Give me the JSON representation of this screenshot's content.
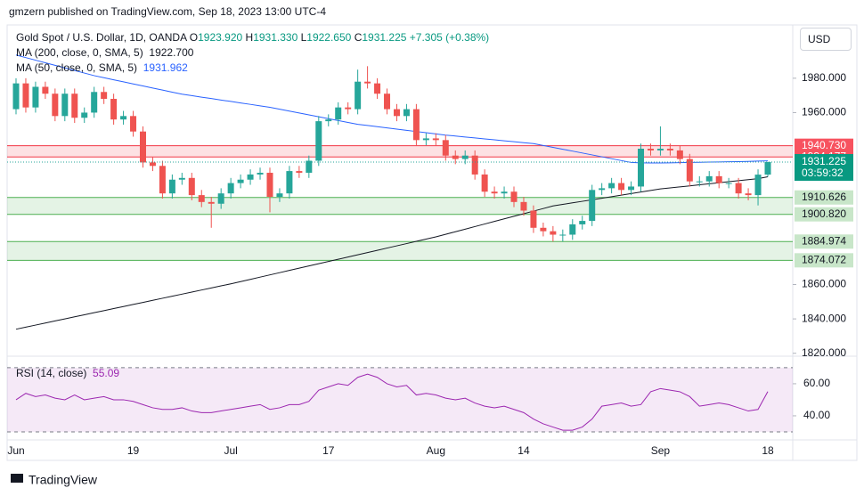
{
  "header": {
    "published": "gmzern published on TradingView.com, Sep 18, 2023 13:00 UTC-4",
    "currency": "USD",
    "footer": "TradingView"
  },
  "chart_data": {
    "type": "candlestick",
    "title": "Gold Spot / U.S. Dollar, 1D, OANDA",
    "ohlc_legend": [
      {
        "label": "O",
        "value": "1923.920"
      },
      {
        "label": "H",
        "value": "1931.330"
      },
      {
        "label": "L",
        "value": "1922.650"
      },
      {
        "label": "C",
        "value": "1931.225"
      }
    ],
    "change": "+7.305 (+0.38%)",
    "categories": [
      "Jun",
      null,
      null,
      null,
      null,
      null,
      null,
      null,
      null,
      null,
      null,
      null,
      "19",
      null,
      null,
      null,
      null,
      null,
      null,
      null,
      null,
      null,
      "Jul",
      null,
      null,
      null,
      null,
      null,
      null,
      null,
      null,
      null,
      "17",
      null,
      null,
      null,
      null,
      null,
      null,
      null,
      null,
      null,
      null,
      "Aug",
      null,
      null,
      null,
      null,
      null,
      null,
      null,
      null,
      "14",
      null,
      null,
      null,
      null,
      null,
      null,
      null,
      null,
      null,
      null,
      null,
      null,
      null,
      "Sep",
      null,
      null,
      null,
      null,
      null,
      null,
      null,
      null,
      null,
      null,
      "18"
    ],
    "open": [
      1962,
      1977,
      1963,
      1975,
      1971,
      1958,
      1971,
      1957,
      1960,
      1972,
      1968,
      1956,
      1958,
      1949,
      1931,
      1929,
      1913,
      1921,
      1922,
      1912,
      1908,
      1907,
      1913,
      1919,
      1921,
      1924,
      1925,
      1911,
      1913,
      1926,
      1925,
      1932,
      1955,
      1956,
      1963,
      1962,
      1978,
      1977,
      1971,
      1962,
      1958,
      1962,
      1944,
      1945,
      1944,
      1935,
      1933,
      1935,
      1924,
      1914,
      1913,
      1914,
      1908,
      1903,
      1893,
      1891,
      1889,
      1889,
      1895,
      1897,
      1915,
      1916,
      1919,
      1915,
      1917,
      1939,
      1938,
      1939,
      1938,
      1933,
      1920,
      1920,
      1923,
      1919,
      1919,
      1913,
      1912,
      1923.92
    ],
    "high": [
      1980,
      1980,
      1978,
      1978,
      1974,
      1974,
      1974,
      1963,
      1975,
      1975,
      1971,
      1961,
      1961,
      1952,
      1934,
      1932,
      1924,
      1925,
      1925,
      1915,
      1911,
      1916,
      1922,
      1924,
      1927,
      1928,
      1928,
      1916,
      1929,
      1929,
      1935,
      1958,
      1959,
      1966,
      1966,
      1985,
      1987,
      1980,
      1974,
      1965,
      1965,
      1965,
      1948,
      1948,
      1947,
      1938,
      1938,
      1938,
      1927,
      1917,
      1917,
      1917,
      1911,
      1906,
      1896,
      1894,
      1892,
      1898,
      1900,
      1918,
      1919,
      1922,
      1922,
      1920,
      1942,
      1942,
      1952,
      1942,
      1941,
      1936,
      1923,
      1926,
      1926,
      1922,
      1922,
      1916,
      1927,
      1931.33
    ],
    "low": [
      1959,
      1960,
      1960,
      1968,
      1955,
      1955,
      1954,
      1954,
      1957,
      1965,
      1953,
      1953,
      1946,
      1928,
      1926,
      1910,
      1910,
      1918,
      1909,
      1905,
      1893,
      1904,
      1910,
      1916,
      1918,
      1921,
      1902,
      1908,
      1910,
      1922,
      1922,
      1929,
      1952,
      1953,
      1959,
      1959,
      1974,
      1968,
      1959,
      1955,
      1955,
      1941,
      1941,
      1941,
      1932,
      1930,
      1930,
      1921,
      1911,
      1910,
      1910,
      1905,
      1900,
      1890,
      1888,
      1885,
      1885,
      1886,
      1892,
      1894,
      1912,
      1913,
      1912,
      1912,
      1914,
      1935,
      1935,
      1935,
      1930,
      1917,
      1917,
      1917,
      1916,
      1916,
      1910,
      1909,
      1906,
      1922.65
    ],
    "close": [
      1977,
      1963,
      1975,
      1971,
      1958,
      1971,
      1957,
      1960,
      1972,
      1968,
      1956,
      1958,
      1949,
      1931,
      1929,
      1913,
      1921,
      1922,
      1912,
      1908,
      1907,
      1913,
      1919,
      1921,
      1924,
      1925,
      1911,
      1913,
      1926,
      1925,
      1932,
      1955,
      1956,
      1963,
      1962,
      1978,
      1977,
      1971,
      1962,
      1958,
      1962,
      1944,
      1945,
      1944,
      1935,
      1933,
      1935,
      1924,
      1914,
      1913,
      1914,
      1908,
      1903,
      1893,
      1891,
      1889,
      1889,
      1895,
      1897,
      1915,
      1916,
      1919,
      1915,
      1917,
      1939,
      1938,
      1939,
      1938,
      1933,
      1920,
      1920,
      1923,
      1919,
      1919,
      1913,
      1912,
      1923.92,
      1931.225
    ],
    "up_color": "#26a69a",
    "down_color": "#ef5350",
    "countdown": "03:59:32",
    "ylim": [
      1818.3,
      2011
    ],
    "yticks": [
      {
        "value": 1820,
        "label": "1820.000"
      },
      {
        "value": 1840,
        "label": "1840.000"
      },
      {
        "value": 1860,
        "label": "1860.000"
      },
      {
        "value": 1960,
        "label": "1960.000"
      },
      {
        "value": 1980,
        "label": "1980.000"
      }
    ],
    "series": [
      {
        "name": "MA (200, close, 0, SMA, 5)",
        "color": "#131722",
        "last_label": "1922.700",
        "values": [
          1834.0,
          1835.2,
          1836.4,
          1837.6,
          1838.8,
          1840.0,
          1841.2,
          1842.4,
          1843.6,
          1844.8,
          1846.0,
          1847.2,
          1848.4,
          1849.6,
          1850.8,
          1852.0,
          1853.2,
          1854.4,
          1855.6,
          1856.8,
          1858.0,
          1859.2,
          1860.4,
          1861.7,
          1863.0,
          1864.3,
          1865.6,
          1866.9,
          1868.2,
          1869.5,
          1870.8,
          1872.1,
          1873.4,
          1874.7,
          1876.0,
          1877.3,
          1878.6,
          1879.9,
          1881.2,
          1882.5,
          1883.8,
          1885.1,
          1886.4,
          1887.7,
          1889.2,
          1890.7,
          1892.2,
          1893.7,
          1895.2,
          1896.7,
          1898.2,
          1899.7,
          1901.2,
          1902.7,
          1904.2,
          1905.7,
          1906.6,
          1907.5,
          1908.4,
          1909.3,
          1910.2,
          1911.1,
          1912.0,
          1912.9,
          1913.8,
          1914.7,
          1915.6,
          1916.2,
          1916.8,
          1917.4,
          1918.0,
          1918.6,
          1919.2,
          1919.8,
          1920.4,
          1921.0,
          1921.6,
          1922.7
        ]
      },
      {
        "name": "MA (50, close, 0, SMA, 5)",
        "color": "#2962ff",
        "last_label": "1931.962",
        "values": [
          1993.5,
          1992.0,
          1990.5,
          1989.0,
          1987.5,
          1986.0,
          1984.5,
          1983.0,
          1981.5,
          1980.3,
          1979.1,
          1977.9,
          1976.7,
          1975.5,
          1974.3,
          1973.1,
          1971.9,
          1970.7,
          1969.9,
          1969.0,
          1968.2,
          1967.3,
          1966.5,
          1965.6,
          1964.8,
          1963.9,
          1963.1,
          1962.0,
          1960.9,
          1959.8,
          1958.7,
          1957.6,
          1956.5,
          1955.4,
          1954.3,
          1953.2,
          1952.5,
          1951.8,
          1951.1,
          1950.4,
          1949.7,
          1949.0,
          1948.3,
          1947.6,
          1946.9,
          1946.4,
          1945.8,
          1945.3,
          1944.7,
          1944.2,
          1943.6,
          1943.1,
          1942.5,
          1942.0,
          1940.9,
          1939.8,
          1938.7,
          1937.6,
          1936.5,
          1935.4,
          1934.3,
          1933.2,
          1932.1,
          1931.0,
          1930.8,
          1930.7,
          1930.7,
          1930.8,
          1930.9,
          1931.0,
          1931.1,
          1931.2,
          1931.3,
          1931.4,
          1931.5,
          1931.6,
          1931.8,
          1931.962
        ]
      }
    ],
    "zones": [
      {
        "color": "#f23645",
        "top": {
          "value": 1940.73,
          "label": "1940.730"
        },
        "bottom": {
          "value": 1934.177,
          "label": "1934.177"
        }
      },
      {
        "color": "#4caf50",
        "top": {
          "value": 1910.626,
          "label": "1910.626"
        },
        "bottom": {
          "value": 1900.82,
          "label": "1900.820"
        }
      },
      {
        "color": "#4caf50",
        "top": {
          "value": 1884.974,
          "label": "1884.974"
        },
        "bottom": {
          "value": 1874.072,
          "label": "1874.072"
        }
      }
    ],
    "rsi": {
      "name": "RSI (14, close)",
      "last_label": "55.09",
      "color": "#9c27b0",
      "values": [
        50,
        54,
        52,
        53,
        51,
        50,
        53,
        50,
        51,
        52,
        50,
        50,
        49,
        47,
        45,
        44,
        44,
        45,
        43,
        42,
        42,
        43,
        44,
        45,
        46,
        47,
        44,
        45,
        47,
        47,
        49,
        56,
        58,
        60,
        59,
        64,
        66,
        64,
        60,
        58,
        59,
        53,
        54,
        53,
        51,
        50,
        51,
        48,
        46,
        45,
        46,
        44,
        42,
        38,
        35,
        33,
        31,
        31,
        33,
        38,
        46,
        47,
        48,
        46,
        47,
        55,
        57,
        56,
        55,
        52,
        46,
        47,
        48,
        47,
        45,
        43,
        44,
        55.09
      ],
      "ylim": [
        27.2,
        74.4
      ],
      "yticks": [
        {
          "value": 40,
          "label": "40.00"
        },
        {
          "value": 60,
          "label": "60.00"
        }
      ],
      "bands": [
        30,
        70
      ]
    }
  }
}
